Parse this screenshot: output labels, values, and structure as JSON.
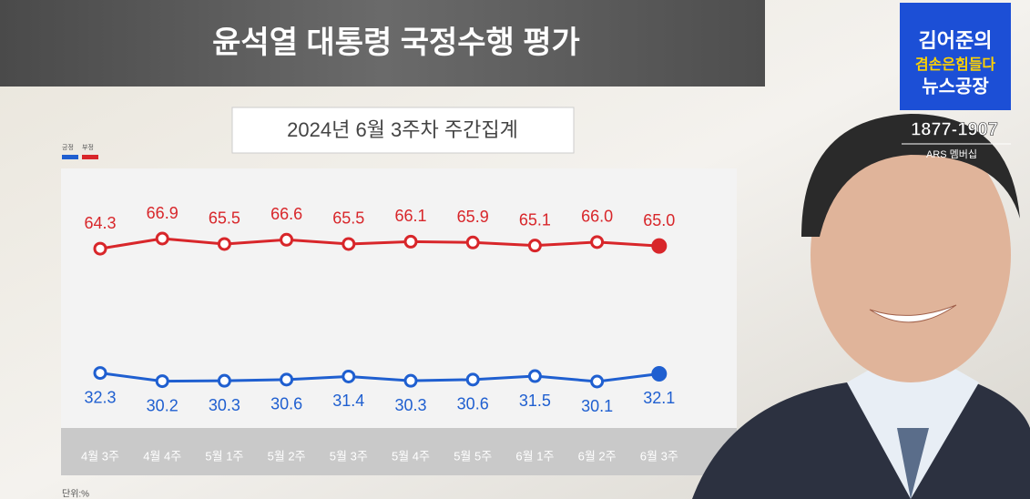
{
  "title": "윤석열 대통령 국정수행 평가",
  "branding": {
    "show": "김어준의",
    "show_sub": "겸손은힘들다",
    "show_sub2": "뉴스공장",
    "phone": "1877-1907",
    "phone_note": "ARS 멤버십"
  },
  "chart_data": {
    "type": "line",
    "subtitle": "2024년 6월 3주차 주간집계",
    "unit_note": "단위:%",
    "categories": [
      "4월 3주",
      "4월 4주",
      "5월 1주",
      "5월 2주",
      "5월 3주",
      "5월 4주",
      "5월 5주",
      "6월 1주",
      "6월 2주",
      "6월 3주"
    ],
    "series": [
      {
        "name": "긍정",
        "color": "#1f5fd0",
        "values": [
          32.3,
          30.2,
          30.3,
          30.6,
          31.4,
          30.3,
          30.6,
          31.5,
          30.1,
          32.1
        ],
        "value_labels": [
          "32.3",
          "30.2",
          "30.3",
          "30.6",
          "31.4",
          "30.3",
          "30.6",
          "31.5",
          "30.1",
          "32.1"
        ]
      },
      {
        "name": "부정",
        "color": "#d8262a",
        "values": [
          64.3,
          66.9,
          65.5,
          66.6,
          65.5,
          66.1,
          65.9,
          65.1,
          66.0,
          65.0
        ],
        "value_labels": [
          "64.3",
          "66.9",
          "65.5",
          "66.6",
          "65.5",
          "66.1",
          "65.9",
          "65.1",
          "66.0",
          "65.0"
        ]
      }
    ]
  }
}
